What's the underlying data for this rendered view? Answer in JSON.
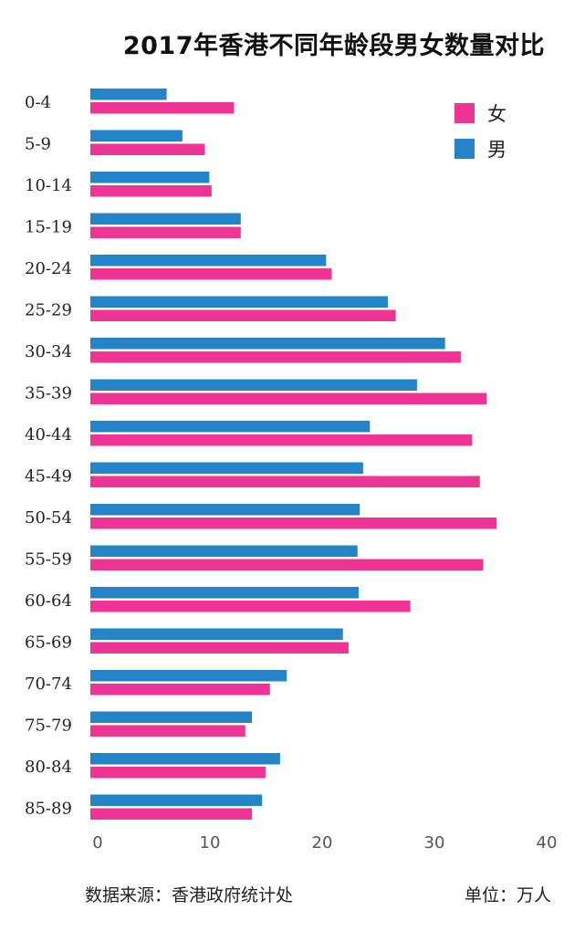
{
  "chart_data": {
    "type": "bar",
    "orientation": "horizontal",
    "title": "2017年香港不同年龄段男女数量对比",
    "categories": [
      "0-4",
      "5-9",
      "10-14",
      "15-19",
      "20-24",
      "25-29",
      "30-34",
      "35-39",
      "40-44",
      "45-49",
      "50-54",
      "55-59",
      "60-64",
      "65-69",
      "70-74",
      "75-79",
      "80-84",
      "85-89"
    ],
    "series": [
      {
        "name": "女",
        "color": "#ee3494",
        "values": [
          12.8,
          10.2,
          10.8,
          13.4,
          21.5,
          27.2,
          33.0,
          35.3,
          34.0,
          34.7,
          36.2,
          35.0,
          28.5,
          23.0,
          16.0,
          13.8,
          15.6,
          14.4
        ]
      },
      {
        "name": "男",
        "color": "#2385c8",
        "values": [
          6.8,
          8.2,
          10.6,
          13.4,
          21.0,
          26.5,
          31.6,
          29.1,
          24.9,
          24.3,
          24.0,
          23.8,
          23.9,
          22.5,
          17.5,
          14.4,
          16.9,
          15.3
        ]
      }
    ],
    "xlim": [
      0,
      40
    ],
    "xticks": [
      "0",
      "10",
      "20",
      "30",
      "40"
    ],
    "xlabel": "",
    "ylabel": "",
    "legend_position": "top-right",
    "grid": false
  },
  "footer": {
    "source": "数据来源：香港政府统计处",
    "unit": "单位：万人"
  }
}
